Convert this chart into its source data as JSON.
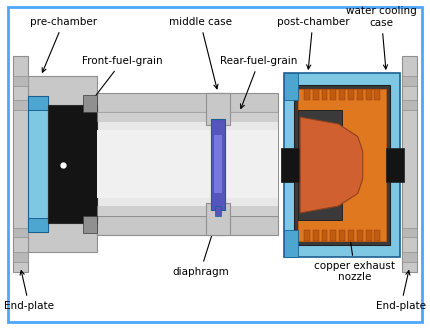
{
  "bg_color": "#ffffff",
  "border_color": "#4da6ff",
  "colors": {
    "light_gray": "#c8c8c8",
    "mid_gray": "#909090",
    "dark_gray": "#3a3a3a",
    "black": "#141414",
    "blue_light": "#7ec8e3",
    "blue_dark": "#1a6090",
    "blue_mid": "#4da6d0",
    "blue_deep": "#2080b0",
    "purple": "#5555bb",
    "purple_light": "#7777dd",
    "orange": "#e07820",
    "orange_dark": "#c05c10",
    "silver": "#b8b8b8",
    "steel": "#808090",
    "white_tube": "#e8e8e8",
    "tube_inner": "#d8d8d8"
  },
  "labels": {
    "pre_chamber": "pre-chamber",
    "middle_case": "middle case",
    "post_chamber": "post-chamber",
    "water_cooling": "water cooling\ncase",
    "front_fuel_grain": "Front-fuel-grain",
    "rear_fuel_grain": "Rear-fuel-grain",
    "diaphragm": "diaphragm",
    "copper_nozzle": "copper exhaust\nnozzle",
    "end_plate_left": "End-plate",
    "end_plate_right": "End-plate"
  }
}
